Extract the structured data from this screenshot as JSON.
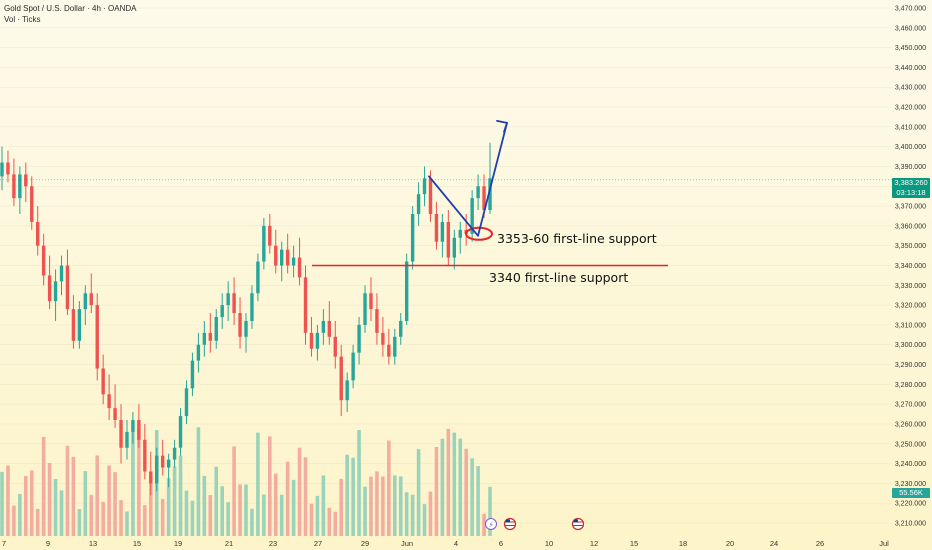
{
  "header": {
    "symbol": "Gold Spot / U.S. Dollar · 4h · OANDA",
    "indicator": "Vol · Ticks"
  },
  "price_axis": {
    "labels": [
      "3,470.000",
      "3,460.000",
      "3,450.000",
      "3,440.000",
      "3,430.000",
      "3,420.000",
      "3,410.000",
      "3,400.000",
      "3,390.000",
      "3,380.000",
      "3,370.000",
      "3,360.000",
      "3,350.000",
      "3,340.000",
      "3,330.000",
      "3,320.000",
      "3,310.000",
      "3,300.000",
      "3,290.000",
      "3,280.000",
      "3,270.000",
      "3,260.000",
      "3,250.000",
      "3,240.000",
      "3,230.000",
      "3,220.000",
      "3,210.000"
    ],
    "values": [
      3470,
      3460,
      3450,
      3440,
      3430,
      3420,
      3410,
      3400,
      3390,
      3380,
      3370,
      3360,
      3350,
      3340,
      3330,
      3320,
      3310,
      3300,
      3290,
      3280,
      3270,
      3260,
      3250,
      3240,
      3230,
      3220,
      3210
    ]
  },
  "time_axis": {
    "labels": [
      "7",
      "9",
      "13",
      "15",
      "19",
      "21",
      "23",
      "27",
      "29",
      "Jun",
      "4",
      "6",
      "10",
      "12",
      "15",
      "18",
      "20",
      "24",
      "26",
      "Jul"
    ]
  },
  "current_price": {
    "price": "3,383.260",
    "countdown": "03:13:18",
    "value": 3383.26
  },
  "volume_tag": "55.56K",
  "annotations": {
    "support1": "3353-60 first-line support",
    "support2": "3340 first-line support"
  },
  "colors": {
    "up": "#26a69a",
    "down": "#ef5350",
    "vol_up": "#8fcfb8",
    "vol_down": "#f2a59b",
    "annotation_red": "#e5252a",
    "annotation_blue": "#1f3fb0",
    "background": "#fdf6d5"
  },
  "chart_data": {
    "type": "candlestick",
    "title": "Gold Spot / U.S. Dollar · 4h · OANDA",
    "ylim": [
      3205,
      3475
    ],
    "support_levels": [
      3340,
      3356
    ],
    "candles": [
      [
        3385,
        3400,
        3378,
        3392
      ],
      [
        3392,
        3398,
        3382,
        3386
      ],
      [
        3386,
        3394,
        3370,
        3374
      ],
      [
        3374,
        3390,
        3366,
        3386
      ],
      [
        3386,
        3392,
        3372,
        3380
      ],
      [
        3380,
        3385,
        3358,
        3362
      ],
      [
        3362,
        3370,
        3345,
        3350
      ],
      [
        3350,
        3356,
        3330,
        3335
      ],
      [
        3335,
        3345,
        3318,
        3322
      ],
      [
        3322,
        3338,
        3312,
        3332
      ],
      [
        3332,
        3345,
        3325,
        3340
      ],
      [
        3340,
        3348,
        3315,
        3318
      ],
      [
        3318,
        3325,
        3298,
        3302
      ],
      [
        3302,
        3322,
        3298,
        3318
      ],
      [
        3318,
        3330,
        3310,
        3326
      ],
      [
        3326,
        3336,
        3316,
        3320
      ],
      [
        3320,
        3326,
        3282,
        3288
      ],
      [
        3288,
        3295,
        3270,
        3275
      ],
      [
        3275,
        3285,
        3262,
        3268
      ],
      [
        3268,
        3280,
        3258,
        3262
      ],
      [
        3262,
        3270,
        3240,
        3248
      ],
      [
        3248,
        3262,
        3242,
        3256
      ],
      [
        3256,
        3266,
        3250,
        3262
      ],
      [
        3262,
        3270,
        3248,
        3252
      ],
      [
        3252,
        3260,
        3232,
        3236
      ],
      [
        3236,
        3246,
        3224,
        3230
      ],
      [
        3230,
        3248,
        3226,
        3244
      ],
      [
        3244,
        3252,
        3234,
        3238
      ],
      [
        3238,
        3245,
        3228,
        3242
      ],
      [
        3242,
        3252,
        3238,
        3248
      ],
      [
        3248,
        3268,
        3244,
        3264
      ],
      [
        3264,
        3282,
        3260,
        3278
      ],
      [
        3278,
        3296,
        3274,
        3292
      ],
      [
        3292,
        3306,
        3286,
        3300
      ],
      [
        3300,
        3312,
        3294,
        3306
      ],
      [
        3306,
        3316,
        3296,
        3302
      ],
      [
        3302,
        3318,
        3298,
        3314
      ],
      [
        3314,
        3326,
        3308,
        3320
      ],
      [
        3320,
        3332,
        3312,
        3326
      ],
      [
        3326,
        3334,
        3310,
        3316
      ],
      [
        3316,
        3324,
        3298,
        3304
      ],
      [
        3304,
        3316,
        3296,
        3312
      ],
      [
        3312,
        3330,
        3308,
        3326
      ],
      [
        3326,
        3346,
        3322,
        3342
      ],
      [
        3342,
        3364,
        3338,
        3360
      ],
      [
        3360,
        3366,
        3346,
        3350
      ],
      [
        3350,
        3358,
        3336,
        3340
      ],
      [
        3340,
        3352,
        3332,
        3348
      ],
      [
        3348,
        3356,
        3336,
        3340
      ],
      [
        3340,
        3350,
        3334,
        3344
      ],
      [
        3344,
        3354,
        3330,
        3334
      ],
      [
        3334,
        3340,
        3300,
        3306
      ],
      [
        3306,
        3314,
        3294,
        3298
      ],
      [
        3298,
        3310,
        3292,
        3306
      ],
      [
        3306,
        3318,
        3300,
        3312
      ],
      [
        3312,
        3322,
        3300,
        3304
      ],
      [
        3304,
        3312,
        3288,
        3294
      ],
      [
        3294,
        3300,
        3264,
        3272
      ],
      [
        3272,
        3286,
        3266,
        3282
      ],
      [
        3282,
        3300,
        3278,
        3296
      ],
      [
        3296,
        3314,
        3290,
        3310
      ],
      [
        3310,
        3330,
        3306,
        3326
      ],
      [
        3326,
        3334,
        3312,
        3318
      ],
      [
        3318,
        3326,
        3300,
        3306
      ],
      [
        3306,
        3314,
        3294,
        3300
      ],
      [
        3300,
        3308,
        3290,
        3294
      ],
      [
        3294,
        3308,
        3290,
        3304
      ],
      [
        3304,
        3316,
        3300,
        3312
      ],
      [
        3312,
        3346,
        3310,
        3342
      ],
      [
        3342,
        3370,
        3338,
        3366
      ],
      [
        3366,
        3382,
        3360,
        3376
      ],
      [
        3376,
        3390,
        3370,
        3384
      ],
      [
        3384,
        3388,
        3362,
        3366
      ],
      [
        3366,
        3372,
        3348,
        3352
      ],
      [
        3352,
        3366,
        3344,
        3362
      ],
      [
        3362,
        3368,
        3340,
        3344
      ],
      [
        3344,
        3358,
        3338,
        3354
      ],
      [
        3354,
        3362,
        3346,
        3358
      ],
      [
        3358,
        3366,
        3350,
        3356
      ],
      [
        3356,
        3378,
        3352,
        3374
      ],
      [
        3374,
        3386,
        3368,
        3380
      ],
      [
        3380,
        3386,
        3364,
        3368
      ],
      [
        3368,
        3402,
        3366,
        3384
      ]
    ],
    "volume_scale_max": 100
  }
}
